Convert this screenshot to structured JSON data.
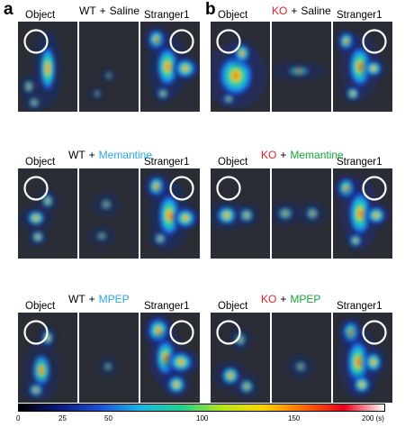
{
  "panels": [
    {
      "label": "a",
      "rows": [
        {
          "left_label": "Object",
          "right_label": "Stranger1",
          "genotype": "WT",
          "plus": "+",
          "treatment": "Saline",
          "genotype_color": "#000000",
          "treatment_color": "#000000"
        },
        {
          "left_label": "Object",
          "right_label": "Stranger1",
          "genotype": "WT",
          "plus": "+",
          "treatment": "Memantine",
          "genotype_color": "#000000",
          "treatment_color": "#29a9e0"
        },
        {
          "left_label": "Object",
          "right_label": "Stranger1",
          "genotype": "WT",
          "plus": "+",
          "treatment": "MPEP",
          "genotype_color": "#000000",
          "treatment_color": "#29a9e0"
        }
      ]
    },
    {
      "label": "b",
      "rows": [
        {
          "left_label": "Object",
          "right_label": "Stranger1",
          "genotype": "KO",
          "plus": "+",
          "treatment": "Saline",
          "genotype_color": "#e0202a",
          "treatment_color": "#000000"
        },
        {
          "left_label": "Object",
          "right_label": "Stranger1",
          "genotype": "KO",
          "plus": "+",
          "treatment": "Memantine",
          "genotype_color": "#e0202a",
          "treatment_color": "#17a53a"
        },
        {
          "left_label": "Object",
          "right_label": "Stranger1",
          "genotype": "KO",
          "plus": "+",
          "treatment": "MPEP",
          "genotype_color": "#e0202a",
          "treatment_color": "#17a53a"
        }
      ]
    }
  ],
  "colorbar": {
    "ticks": [
      "0",
      "25",
      "50",
      "100",
      "150",
      "200 (s)"
    ],
    "tick_values": [
      0,
      25,
      50,
      100,
      150,
      200
    ],
    "max": 200,
    "colors": [
      "#000000",
      "#0a1a7a",
      "#1e4fd8",
      "#19b7e8",
      "#1fd28c",
      "#b5e61a",
      "#ffd400",
      "#ff6a00",
      "#e8001c",
      "#ffffff"
    ]
  }
}
